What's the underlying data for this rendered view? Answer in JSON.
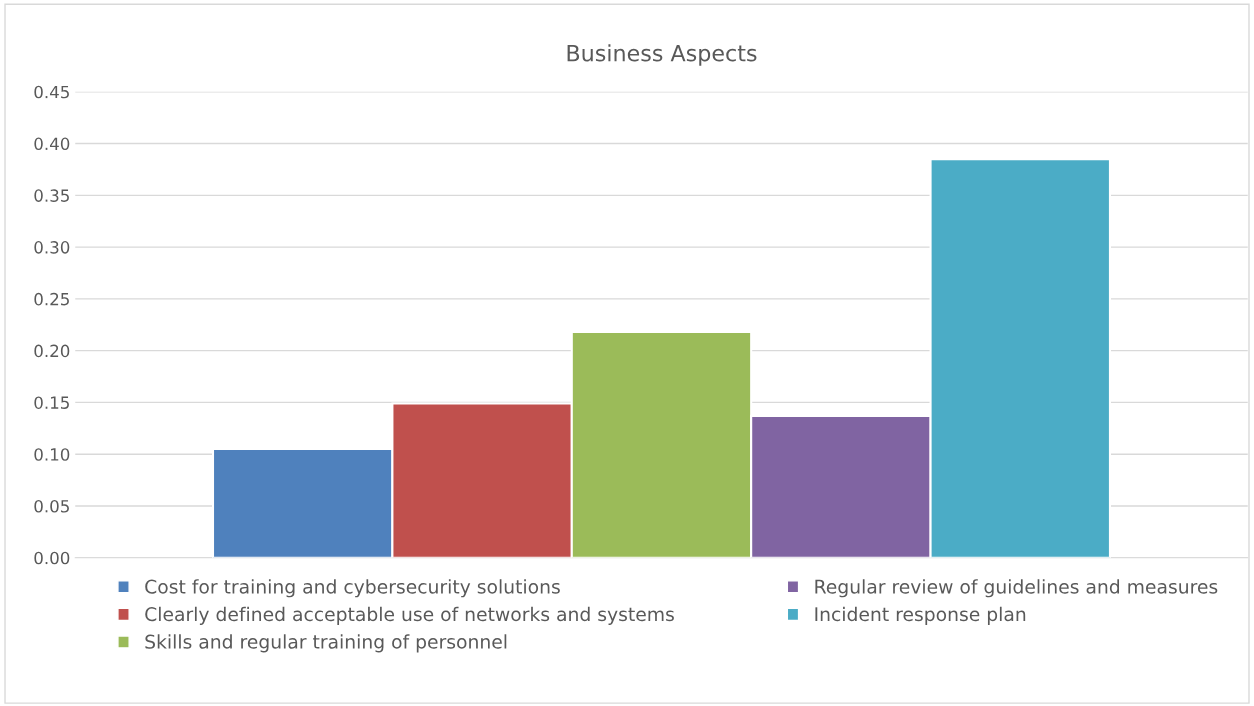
{
  "chart_data": {
    "type": "bar",
    "title": "Business Aspects",
    "categories": [
      null
    ],
    "series": [
      {
        "name": "Cost for training and cybersecurity solutions",
        "color": "#4f81bd",
        "values": [
          0.105
        ]
      },
      {
        "name": "Clearly defined acceptable use of networks and systems",
        "color": "#c0504d",
        "values": [
          0.149
        ]
      },
      {
        "name": "Skills and regular training of personnel",
        "color": "#9bbb59",
        "values": [
          0.218
        ]
      },
      {
        "name": "Regular review of guidelines and measures",
        "color": "#8064a2",
        "values": [
          0.137
        ]
      },
      {
        "name": "Incident response plan",
        "color": "#4bacc6",
        "values": [
          0.385
        ]
      }
    ],
    "ylim": [
      0,
      0.45
    ],
    "yticks": [
      {
        "value": 0,
        "label": "0.00"
      },
      {
        "value": 0.05,
        "label": "0.05"
      },
      {
        "value": 0.1,
        "label": "0.10"
      },
      {
        "value": 0.15,
        "label": "0.15"
      },
      {
        "value": 0.2,
        "label": "0.20"
      },
      {
        "value": 0.25,
        "label": "0.25"
      },
      {
        "value": 0.3,
        "label": "0.30"
      },
      {
        "value": 0.35,
        "label": "0.35"
      },
      {
        "value": 0.4,
        "label": "0.40"
      },
      {
        "value": 0.45,
        "label": "0.45"
      }
    ],
    "grid": "y",
    "legend": "bottom"
  }
}
